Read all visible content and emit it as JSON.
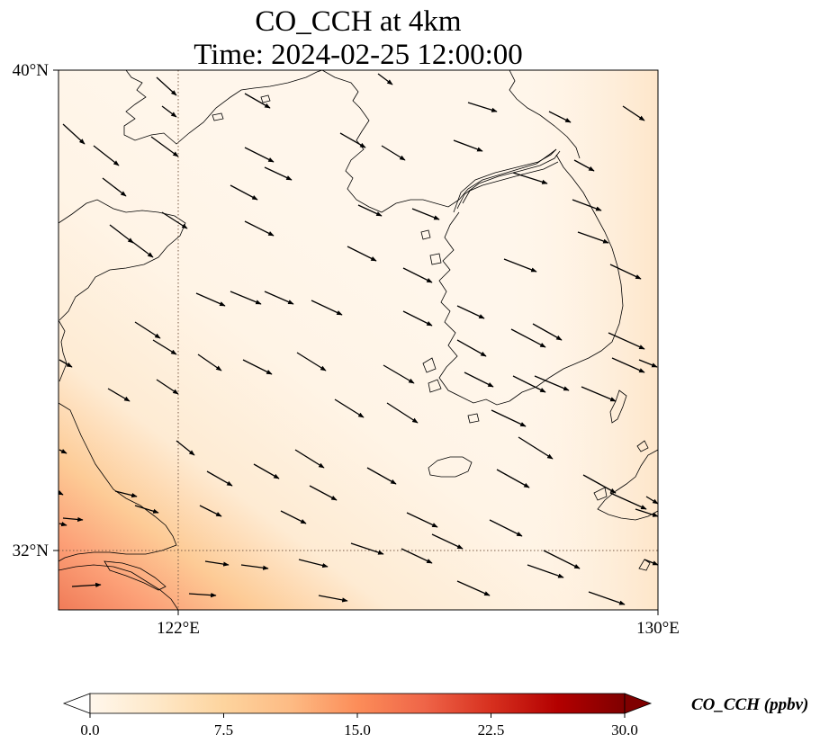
{
  "title": {
    "line1": "CO_CCH at 4km",
    "line2": "Time: 2024-02-25 12:00:00"
  },
  "map": {
    "lon_range": [
      120,
      130
    ],
    "lat_range": [
      31,
      40
    ],
    "gridlines": {
      "lon": [
        122
      ],
      "lat": [
        32
      ],
      "style": "dotted"
    },
    "lon_ticks": [
      {
        "value": 122,
        "label": "122°E"
      },
      {
        "value": 130,
        "label": "130°E"
      }
    ],
    "lat_ticks": [
      {
        "value": 40,
        "label": "40°N"
      },
      {
        "value": 32,
        "label": "32°N"
      }
    ],
    "field": "CO_CCH",
    "field_range_shown": [
      0,
      13
    ],
    "wind_vector_color": "#000000"
  },
  "colorbar": {
    "label": "CO_CCH (ppbv)",
    "min": 0,
    "max": 30,
    "extend": "both",
    "colormap": "OrRd",
    "ticks": [
      {
        "value": 0,
        "label": "0.0"
      },
      {
        "value": 7.5,
        "label": "7.5"
      },
      {
        "value": 15,
        "label": "15.0"
      },
      {
        "value": 22.5,
        "label": "22.5"
      },
      {
        "value": 30,
        "label": "30.0"
      }
    ],
    "colors": [
      "#fff7ec",
      "#fee8c8",
      "#fdd49e",
      "#fdbb84",
      "#fc8d59",
      "#ef6548",
      "#d7301f",
      "#b30000",
      "#7f0000"
    ]
  }
}
